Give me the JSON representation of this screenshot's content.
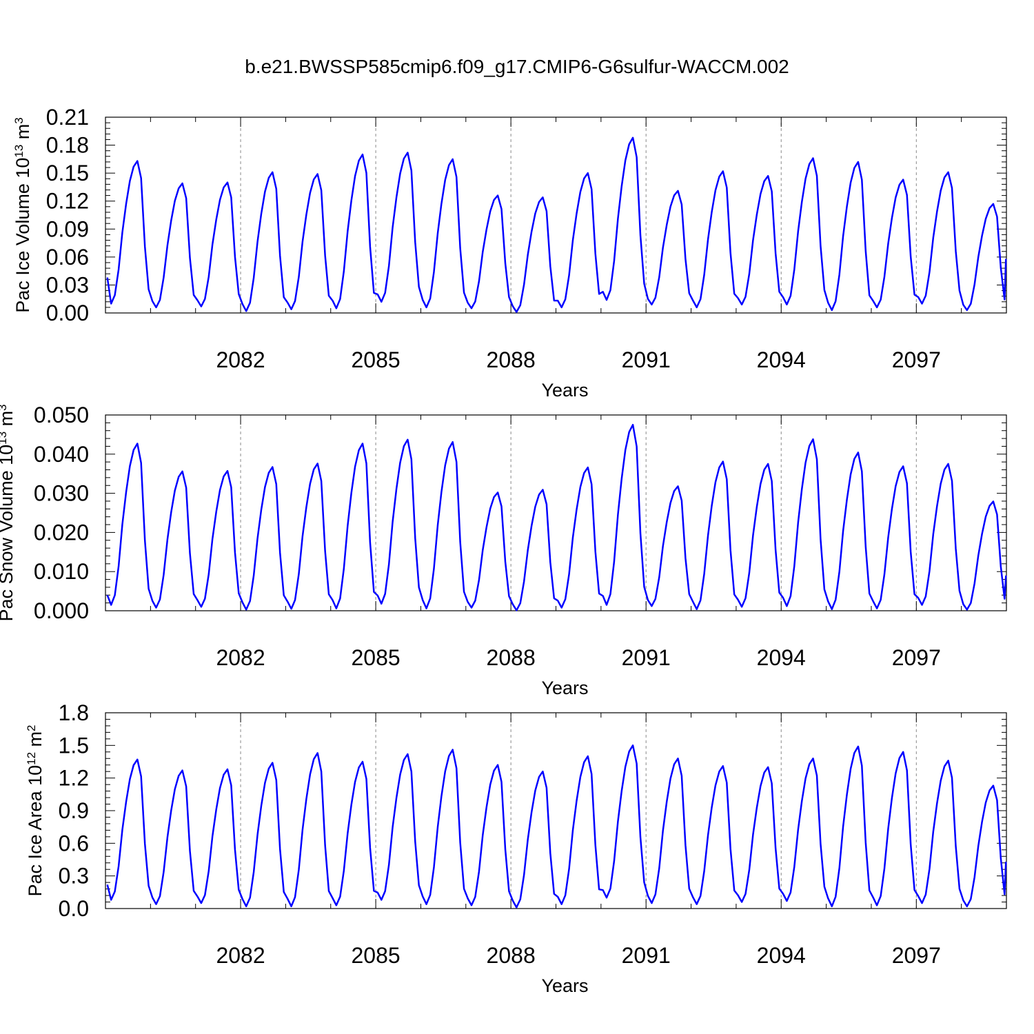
{
  "title": "b.e21.BWSSP585cmip6.f09_g17.CMIP6-G6sulfur-WACCM.002",
  "chart_data": [
    {
      "type": "line",
      "ylabel": "Pac Ice Volume 10",
      "ylabel_exp": "13",
      "ylabel_unit": " m",
      "ylabel_unit_exp": "3",
      "xlabel": "Years",
      "xlim": [
        2079.0,
        2099.0
      ],
      "ylim": [
        0.0,
        0.21
      ],
      "yticks": [
        0.0,
        0.03,
        0.06,
        0.09,
        0.12,
        0.15,
        0.18,
        0.21
      ],
      "ytick_labels": [
        "0.00",
        "0.03",
        "0.06",
        "0.09",
        "0.12",
        "0.15",
        "0.18",
        "0.21"
      ],
      "xticks": [
        2082,
        2085,
        2088,
        2091,
        2094,
        2097
      ],
      "xtick_labels": [
        "2082",
        "2085",
        "2088",
        "2091",
        "2094",
        "2097"
      ],
      "grid": "vertical dashed",
      "annual": [
        {
          "year": 2079,
          "min": 0.01,
          "max": 0.163
        },
        {
          "year": 2080,
          "min": 0.006,
          "max": 0.139
        },
        {
          "year": 2081,
          "min": 0.007,
          "max": 0.14
        },
        {
          "year": 2082,
          "min": 0.002,
          "max": 0.151
        },
        {
          "year": 2083,
          "min": 0.004,
          "max": 0.149
        },
        {
          "year": 2084,
          "min": 0.005,
          "max": 0.17
        },
        {
          "year": 2085,
          "min": 0.012,
          "max": 0.172
        },
        {
          "year": 2086,
          "min": 0.006,
          "max": 0.165
        },
        {
          "year": 2087,
          "min": 0.005,
          "max": 0.126
        },
        {
          "year": 2088,
          "min": 0.001,
          "max": 0.124
        },
        {
          "year": 2089,
          "min": 0.006,
          "max": 0.15
        },
        {
          "year": 2090,
          "min": 0.014,
          "max": 0.188
        },
        {
          "year": 2091,
          "min": 0.009,
          "max": 0.131
        },
        {
          "year": 2092,
          "min": 0.006,
          "max": 0.152
        },
        {
          "year": 2093,
          "min": 0.009,
          "max": 0.147
        },
        {
          "year": 2094,
          "min": 0.009,
          "max": 0.166
        },
        {
          "year": 2095,
          "min": 0.003,
          "max": 0.162
        },
        {
          "year": 2096,
          "min": 0.006,
          "max": 0.143
        },
        {
          "year": 2097,
          "min": 0.01,
          "max": 0.151
        },
        {
          "year": 2098,
          "min": 0.003,
          "max": 0.117
        }
      ],
      "start_value": 0.038,
      "end_value": 0.058
    },
    {
      "type": "line",
      "ylabel": "Pac Snow Volume 10",
      "ylabel_exp": "13",
      "ylabel_unit": " m",
      "ylabel_unit_exp": "3",
      "xlabel": "Years",
      "xlim": [
        2079.0,
        2099.0
      ],
      "ylim": [
        0.0,
        0.05
      ],
      "yticks": [
        0.0,
        0.01,
        0.02,
        0.03,
        0.04,
        0.05
      ],
      "ytick_labels": [
        "0.000",
        "0.010",
        "0.020",
        "0.030",
        "0.040",
        "0.050"
      ],
      "xticks": [
        2082,
        2085,
        2088,
        2091,
        2094,
        2097
      ],
      "xtick_labels": [
        "2082",
        "2085",
        "2088",
        "2091",
        "2094",
        "2097"
      ],
      "grid": "vertical dashed",
      "annual": [
        {
          "year": 2079,
          "min": 0.0015,
          "max": 0.0427
        },
        {
          "year": 2080,
          "min": 0.0008,
          "max": 0.0356
        },
        {
          "year": 2081,
          "min": 0.001,
          "max": 0.0357
        },
        {
          "year": 2082,
          "min": 0.0003,
          "max": 0.0367
        },
        {
          "year": 2083,
          "min": 0.0005,
          "max": 0.0376
        },
        {
          "year": 2084,
          "min": 0.0006,
          "max": 0.0427
        },
        {
          "year": 2085,
          "min": 0.0018,
          "max": 0.0437
        },
        {
          "year": 2086,
          "min": 0.0006,
          "max": 0.0431
        },
        {
          "year": 2087,
          "min": 0.0008,
          "max": 0.0302
        },
        {
          "year": 2088,
          "min": 0.0001,
          "max": 0.0309
        },
        {
          "year": 2089,
          "min": 0.0008,
          "max": 0.0366
        },
        {
          "year": 2090,
          "min": 0.0015,
          "max": 0.0475
        },
        {
          "year": 2091,
          "min": 0.0012,
          "max": 0.0318
        },
        {
          "year": 2092,
          "min": 0.0004,
          "max": 0.0381
        },
        {
          "year": 2093,
          "min": 0.001,
          "max": 0.0375
        },
        {
          "year": 2094,
          "min": 0.0012,
          "max": 0.0438
        },
        {
          "year": 2095,
          "min": 0.0004,
          "max": 0.0404
        },
        {
          "year": 2096,
          "min": 0.0006,
          "max": 0.0369
        },
        {
          "year": 2097,
          "min": 0.0015,
          "max": 0.0375
        },
        {
          "year": 2098,
          "min": 0.0003,
          "max": 0.0279
        }
      ],
      "start_value": 0.004,
      "end_value": 0.009
    },
    {
      "type": "line",
      "ylabel": "Pac Ice Area 10",
      "ylabel_exp": "12",
      "ylabel_unit": " m",
      "ylabel_unit_exp": "2",
      "xlabel": "Years",
      "xlim": [
        2079.0,
        2099.0
      ],
      "ylim": [
        0.0,
        1.8
      ],
      "yticks": [
        0.0,
        0.3,
        0.6,
        0.9,
        1.2,
        1.5,
        1.8
      ],
      "ytick_labels": [
        "0.0",
        "0.3",
        "0.6",
        "0.9",
        "1.2",
        "1.5",
        "1.8"
      ],
      "xticks": [
        2082,
        2085,
        2088,
        2091,
        2094,
        2097
      ],
      "xtick_labels": [
        "2082",
        "2085",
        "2088",
        "2091",
        "2094",
        "2097"
      ],
      "grid": "vertical dashed",
      "annual": [
        {
          "year": 2079,
          "min": 0.08,
          "max": 1.37
        },
        {
          "year": 2080,
          "min": 0.04,
          "max": 1.27
        },
        {
          "year": 2081,
          "min": 0.05,
          "max": 1.28
        },
        {
          "year": 2082,
          "min": 0.02,
          "max": 1.34
        },
        {
          "year": 2083,
          "min": 0.02,
          "max": 1.43
        },
        {
          "year": 2084,
          "min": 0.03,
          "max": 1.35
        },
        {
          "year": 2085,
          "min": 0.08,
          "max": 1.42
        },
        {
          "year": 2086,
          "min": 0.04,
          "max": 1.46
        },
        {
          "year": 2087,
          "min": 0.03,
          "max": 1.32
        },
        {
          "year": 2088,
          "min": 0.01,
          "max": 1.26
        },
        {
          "year": 2089,
          "min": 0.04,
          "max": 1.4
        },
        {
          "year": 2090,
          "min": 0.1,
          "max": 1.5
        },
        {
          "year": 2091,
          "min": 0.05,
          "max": 1.38
        },
        {
          "year": 2092,
          "min": 0.04,
          "max": 1.31
        },
        {
          "year": 2093,
          "min": 0.06,
          "max": 1.3
        },
        {
          "year": 2094,
          "min": 0.07,
          "max": 1.38
        },
        {
          "year": 2095,
          "min": 0.02,
          "max": 1.49
        },
        {
          "year": 2096,
          "min": 0.03,
          "max": 1.44
        },
        {
          "year": 2097,
          "min": 0.05,
          "max": 1.36
        },
        {
          "year": 2098,
          "min": 0.02,
          "max": 1.13
        }
      ],
      "start_value": 0.22,
      "end_value": 0.43
    }
  ]
}
